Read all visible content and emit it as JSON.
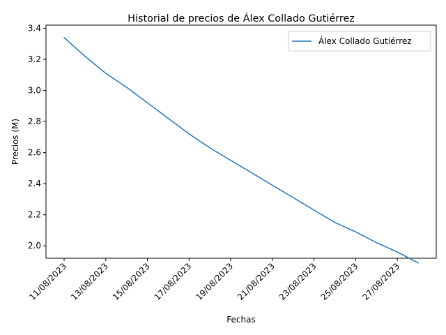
{
  "chart_data": {
    "type": "line",
    "title": "Historial de precios de Álex Collado Gutiérrez",
    "xlabel": "Fechas",
    "ylabel": "Precios (M)",
    "x": [
      "11/08/2023",
      "12/08/2023",
      "13/08/2023",
      "14/08/2023",
      "15/08/2023",
      "16/08/2023",
      "17/08/2023",
      "18/08/2023",
      "19/08/2023",
      "20/08/2023",
      "21/08/2023",
      "22/08/2023",
      "23/08/2023",
      "24/08/2023",
      "25/08/2023",
      "26/08/2023",
      "27/08/2023",
      "28/08/2023"
    ],
    "x_ticks": [
      "11/08/2023",
      "13/08/2023",
      "15/08/2023",
      "17/08/2023",
      "19/08/2023",
      "21/08/2023",
      "23/08/2023",
      "25/08/2023",
      "27/08/2023"
    ],
    "y_ticks": [
      "2.0",
      "2.2",
      "2.4",
      "2.6",
      "2.8",
      "3.0",
      "3.2",
      "3.4"
    ],
    "ylim": [
      1.92,
      3.42
    ],
    "series": [
      {
        "name": "Álex Collado Gutiérrez",
        "color": "#1f77b4",
        "values": [
          3.34,
          3.22,
          3.11,
          3.02,
          2.92,
          2.82,
          2.72,
          2.63,
          2.55,
          2.47,
          2.39,
          2.31,
          2.23,
          2.15,
          2.09,
          2.02,
          1.96,
          1.89
        ]
      }
    ],
    "legend_position": "top-right",
    "grid": false
  }
}
